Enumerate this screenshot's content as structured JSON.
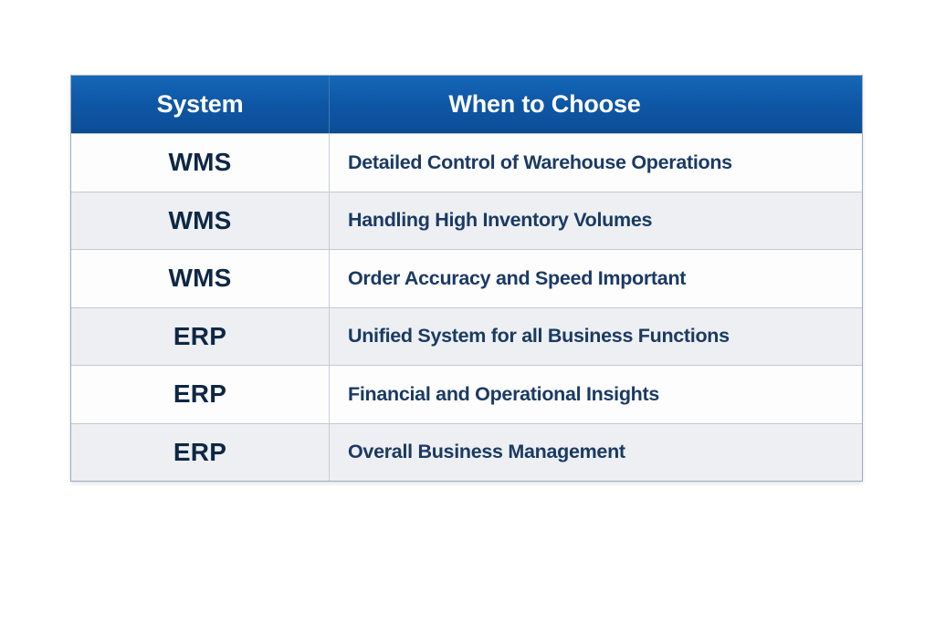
{
  "chart_data": {
    "type": "table",
    "title": "",
    "columns": [
      "System",
      "When to Choose"
    ],
    "rows": [
      [
        "WMS",
        "Detailed Control of Warehouse Operations"
      ],
      [
        "WMS",
        "Handling High Inventory Volumes"
      ],
      [
        "WMS",
        "Order Accuracy and Speed Important"
      ],
      [
        "ERP",
        "Unified System for all Business Functions"
      ],
      [
        "ERP",
        "Financial and Operational Insights"
      ],
      [
        "ERP",
        "Overall Business Management"
      ]
    ],
    "layout_hints": {
      "header_position": "top",
      "zebra_striping": true,
      "first_column_alignment": "center",
      "second_column_alignment": "left"
    }
  },
  "colors": {
    "header_background": "#0F58A7",
    "header_background_light": "#1568B8",
    "header_background_dark": "#0A4A90",
    "header_text": "#FFFFFF",
    "row_alt_background": "#EDEFF2",
    "row_background": "#FDFDFE",
    "system_text": "#0E2745",
    "when_text": "#1A3A63",
    "grid_line": "#C3C9D2",
    "outer_border": "#9FABB9",
    "page_background": "#FFFFFF"
  }
}
